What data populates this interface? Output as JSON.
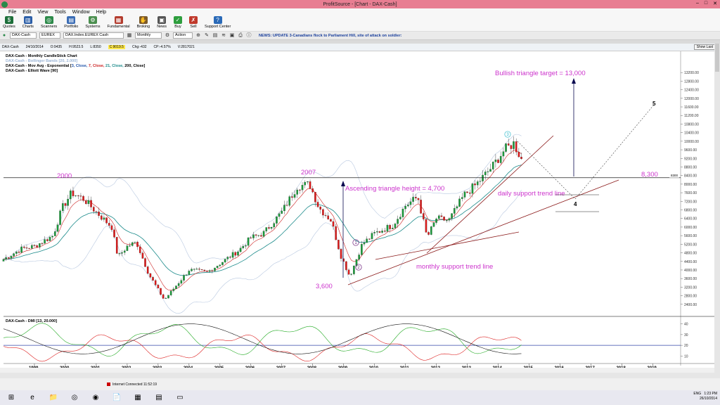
{
  "window": {
    "title": "ProfitSource - [Chart - DAX-Cash]",
    "controls": [
      "–",
      "□",
      "✕"
    ]
  },
  "menu": [
    "File",
    "Edit",
    "View",
    "Tools",
    "Window",
    "Help"
  ],
  "toolbar": [
    {
      "label": "Quotes",
      "icon": "quotes-icon",
      "color": "#1d6f3a"
    },
    {
      "label": "Charts",
      "icon": "charts-icon",
      "color": "#2c5fa8"
    },
    {
      "label": "Scanners",
      "icon": "scanners-icon",
      "color": "#2d8a4a"
    },
    {
      "label": "Portfolio",
      "icon": "portfolio-icon",
      "color": "#3a6cb5"
    },
    {
      "label": "Systems",
      "icon": "systems-icon",
      "color": "#4b8f4f"
    },
    {
      "label": "Fundamental",
      "icon": "fundamental-icon",
      "color": "#b33c2e"
    },
    {
      "label": "Broking",
      "icon": "broking-icon",
      "color": "#7c5a2a"
    },
    {
      "label": "News",
      "icon": "news-icon",
      "color": "#555555"
    },
    {
      "label": "Buy",
      "icon": "buy-icon",
      "color": "#2e9e3e"
    },
    {
      "label": "Sell",
      "icon": "sell-icon",
      "color": "#c0392b"
    },
    {
      "label": "Support Center",
      "icon": "support-icon",
      "color": "#2a6ab8"
    }
  ],
  "symbolbar": {
    "symbol": "DAX-Cash",
    "exchange": "EUREX",
    "description": "DAX.Index.EUREX Cash",
    "period": "Monthly",
    "action": "Action",
    "news": "NEWS: UPDATE 3-Canadians flock to Parliament Hill, site of attack on soldier:"
  },
  "quote": {
    "symbol": "DAX-Cash",
    "date": "24/10/2014",
    "open": "O:9435",
    "high": "H:9523.5",
    "low": "L:8350",
    "close": "C:9019.5",
    "change": "Chg:-432",
    "change_pct": "CP:-4.57%",
    "volume": "V:2817021",
    "show_last": "Show Last"
  },
  "legend": [
    {
      "text": "DAX-Cash - Monthly CandleStick Chart",
      "color": "#000000"
    },
    {
      "text": "DAX-Cash - Bollinger Bands [20, 2.000]",
      "color": "#9ab4d6"
    },
    {
      "text": "DAX-Cash - Mov Avg - Exponential [3, Close, 7, Close, 21, Close, 200, Close]",
      "color": "#000000"
    },
    {
      "text": "DAX-Cash - Elliott Wave [90]",
      "color": "#000000"
    }
  ],
  "legend_params": [
    {
      "t": "3, Close",
      "c": "#2255aa"
    },
    {
      "t": "7, Close",
      "c": "#cc2222"
    },
    {
      "t": "21, Close",
      "c": "#1a8a8a"
    },
    {
      "t": "200, Close",
      "c": "#000000"
    }
  ],
  "dmi_legend": "DAX-Cash - DMI [13, 20.000]",
  "annotations": {
    "bullish_target": "Bullish triangle target = 13,000",
    "year_2000": "2000",
    "year_2007": "2007",
    "level_8300": "8,300",
    "ascending": "Ascending triangle height = 4,700",
    "daily_support": "daily support trend line",
    "monthly_support": "monthly support trend line",
    "low_3600": "3,600",
    "wave_1": "1",
    "wave_2": "2",
    "wave_3": "3",
    "wave_4": "4",
    "wave_5": "5",
    "price_tag": "8300"
  },
  "chart_data": {
    "type": "candlestick",
    "price_axis": {
      "min": 2400,
      "max": 13200,
      "ticks": [
        2400,
        2800,
        3200,
        3600,
        4000,
        4400,
        4800,
        5200,
        5600,
        6000,
        6400,
        6800,
        7200,
        7600,
        8000,
        8400,
        8800,
        9200,
        9600,
        10000,
        10400,
        10800,
        11200,
        11600,
        12000,
        12400,
        12800,
        13200
      ]
    },
    "dmi_axis": {
      "ticks": [
        10,
        20,
        30,
        40
      ]
    },
    "x_labels": [
      "1999",
      "2000",
      "2001",
      "2002",
      "2003",
      "2004",
      "2005",
      "2006",
      "2007",
      "2008",
      "2009",
      "2010",
      "2011",
      "2012",
      "2013",
      "2014",
      "2015",
      "2016",
      "2017",
      "2018",
      "2019"
    ],
    "anchors": [
      {
        "t": 1998.0,
        "v": 4500
      },
      {
        "t": 1998.6,
        "v": 5000
      },
      {
        "t": 1999.0,
        "v": 5100
      },
      {
        "t": 1999.6,
        "v": 5600
      },
      {
        "t": 1999.9,
        "v": 6900
      },
      {
        "t": 2000.2,
        "v": 7600
      },
      {
        "t": 2000.6,
        "v": 7300
      },
      {
        "t": 2001.0,
        "v": 6700
      },
      {
        "t": 2001.5,
        "v": 6000
      },
      {
        "t": 2001.7,
        "v": 4600
      },
      {
        "t": 2002.0,
        "v": 5100
      },
      {
        "t": 2002.3,
        "v": 5300
      },
      {
        "t": 2002.7,
        "v": 3800
      },
      {
        "t": 2003.2,
        "v": 2600
      },
      {
        "t": 2003.6,
        "v": 3300
      },
      {
        "t": 2004.0,
        "v": 4000
      },
      {
        "t": 2004.6,
        "v": 3900
      },
      {
        "t": 2005.0,
        "v": 4300
      },
      {
        "t": 2005.6,
        "v": 4900
      },
      {
        "t": 2006.0,
        "v": 5500
      },
      {
        "t": 2006.4,
        "v": 5700
      },
      {
        "t": 2007.0,
        "v": 6700
      },
      {
        "t": 2007.5,
        "v": 7900
      },
      {
        "t": 2007.9,
        "v": 8000
      },
      {
        "t": 2008.2,
        "v": 6900
      },
      {
        "t": 2008.6,
        "v": 6300
      },
      {
        "t": 2008.9,
        "v": 4700
      },
      {
        "t": 2009.2,
        "v": 3700
      },
      {
        "t": 2009.6,
        "v": 5200
      },
      {
        "t": 2010.0,
        "v": 5700
      },
      {
        "t": 2010.6,
        "v": 6100
      },
      {
        "t": 2011.0,
        "v": 7000
      },
      {
        "t": 2011.4,
        "v": 7400
      },
      {
        "t": 2011.7,
        "v": 5500
      },
      {
        "t": 2012.0,
        "v": 6400
      },
      {
        "t": 2012.4,
        "v": 6300
      },
      {
        "t": 2012.9,
        "v": 7500
      },
      {
        "t": 2013.3,
        "v": 8000
      },
      {
        "t": 2013.8,
        "v": 8800
      },
      {
        "t": 2014.2,
        "v": 9600
      },
      {
        "t": 2014.5,
        "v": 9900
      },
      {
        "t": 2014.8,
        "v": 9020
      }
    ],
    "target_level": 13000,
    "resistance_level": 8300
  },
  "status": {
    "connection": "Internet Connected 11:52:19"
  },
  "taskbar": {
    "apps": [
      "⊞",
      "e",
      "📁",
      "◎",
      "◉",
      "📄",
      "▦",
      "▤",
      "▭"
    ],
    "lang": "ENG",
    "time": "1:23 PM",
    "date": "26/10/2014"
  }
}
